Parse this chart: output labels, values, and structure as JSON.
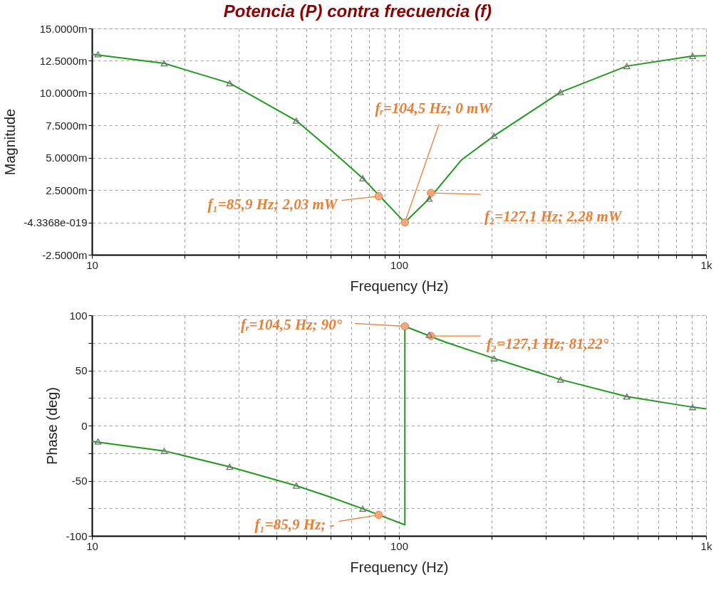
{
  "chart_data": [
    {
      "type": "line",
      "title": "Potencia (P) contra frecuencia (f)",
      "xlabel": "Frequency (Hz)",
      "ylabel": "Magnitude",
      "log": "x",
      "grid": true,
      "xlim": [
        10,
        1000
      ],
      "xticks": [
        10,
        {
          "value": 20,
          "label": null
        },
        {
          "value": 30,
          "label": null
        },
        {
          "value": 40,
          "label": null
        },
        {
          "value": 50,
          "label": null
        },
        {
          "value": 60,
          "label": null
        },
        {
          "value": 70,
          "label": null
        },
        {
          "value": 80,
          "label": null
        },
        {
          "value": 90,
          "label": null
        },
        100,
        {
          "value": 200,
          "label": null
        },
        {
          "value": 300,
          "label": null
        },
        {
          "value": 400,
          "label": null
        },
        {
          "value": 500,
          "label": null
        },
        {
          "value": 600,
          "label": null
        },
        {
          "value": 700,
          "label": null
        },
        {
          "value": 800,
          "label": null
        },
        {
          "value": 900,
          "label": null
        },
        {
          "value": 1000,
          "label": "1k"
        }
      ],
      "ylim": [
        -2.5,
        15
      ],
      "yticks": [
        {
          "value": -2.5,
          "label": "-2.5000m"
        },
        {
          "value": 0,
          "label": "-4.3368e-019"
        },
        {
          "value": 2.5,
          "label": "2.5000m"
        },
        {
          "value": 5,
          "label": "5.0000m"
        },
        {
          "value": 7.5,
          "label": "7.5000m"
        },
        {
          "value": 10,
          "label": "10.0000m"
        },
        {
          "value": 12.5,
          "label": "12.5000m"
        },
        {
          "value": 15,
          "label": "15.0000m"
        }
      ],
      "series": [
        {
          "color": "#1f9a1f",
          "x": [
            10,
            17.2,
            28.1,
            46.3,
            60,
            76.2,
            104.5,
            125.4,
            160,
            204,
            335.7,
            552,
            904,
            1000
          ],
          "values": [
            13.0,
            12.3,
            10.77,
            7.87,
            5.6,
            3.42,
            0,
            1.83,
            4.85,
            6.7,
            10.07,
            12.09,
            12.87,
            12.9
          ]
        },
        {
          "type": "scatter",
          "marker": "triangle",
          "color": "#707070",
          "x": [
            10.47,
            17.2,
            28.1,
            46.3,
            76.2,
            125.4,
            204,
            335.7,
            552,
            904
          ],
          "values": [
            13.0,
            12.3,
            10.77,
            7.87,
            3.42,
            1.83,
            6.7,
            10.07,
            12.09,
            12.87
          ]
        }
      ],
      "annotations": [
        {
          "text": "f₁=85,9 Hz; 2,03 mW",
          "x": 85.9,
          "y": 2.03
        },
        {
          "text": "fᵣ=104,5 Hz; 0 mW",
          "x": 104.5,
          "y": 0
        },
        {
          "text": "f₂=127,1 Hz; 2,28 mW",
          "x": 127.1,
          "y": 2.28
        }
      ]
    },
    {
      "type": "line",
      "xlabel": "Frequency (Hz)",
      "ylabel": "Phase (deg)",
      "log": "x",
      "grid": true,
      "xlim": [
        10,
        1000
      ],
      "xticks": [
        10,
        {
          "value": 20,
          "label": null
        },
        {
          "value": 30,
          "label": null
        },
        {
          "value": 40,
          "label": null
        },
        {
          "value": 50,
          "label": null
        },
        {
          "value": 60,
          "label": null
        },
        {
          "value": 70,
          "label": null
        },
        {
          "value": 80,
          "label": null
        },
        {
          "value": 90,
          "label": null
        },
        100,
        {
          "value": 200,
          "label": null
        },
        {
          "value": 300,
          "label": null
        },
        {
          "value": 400,
          "label": null
        },
        {
          "value": 500,
          "label": null
        },
        {
          "value": 600,
          "label": null
        },
        {
          "value": 700,
          "label": null
        },
        {
          "value": 800,
          "label": null
        },
        {
          "value": 900,
          "label": null
        },
        {
          "value": 1000,
          "label": "1k"
        }
      ],
      "ylim": [
        -100,
        100
      ],
      "yticks": [
        -100,
        {
          "value": -75,
          "label": null
        },
        -50,
        {
          "value": -25,
          "label": null
        },
        0,
        {
          "value": 25,
          "label": null
        },
        50,
        {
          "value": 75,
          "label": null
        },
        100
      ],
      "series": [
        {
          "color": "#1f9a1f",
          "x": [
            10,
            17.2,
            28.1,
            46.3,
            60,
            76.2,
            104.5,
            104.5,
            140,
            204,
            335.7,
            552,
            904,
            1000
          ],
          "values": [
            -14.3,
            -23.0,
            -37.4,
            -54.5,
            -65,
            -75.4,
            -90,
            90,
            76.1,
            60.9,
            41.7,
            26.3,
            16.7,
            15.1
          ]
        },
        {
          "type": "scatter",
          "marker": "triangle",
          "color": "#707070",
          "x": [
            10.47,
            17.2,
            28.1,
            46.3,
            76.2,
            125.4,
            204,
            335.7,
            552,
            904
          ],
          "values": [
            -14.5,
            -23.0,
            -37.4,
            -54.5,
            -75.4,
            82.2,
            60.9,
            41.7,
            26.3,
            16.7
          ]
        }
      ],
      "annotations": [
        {
          "text": "fᵣ=104,5 Hz; 90°",
          "x": 104.5,
          "y": 90
        },
        {
          "text": "f₂=127,1 Hz; 81,22°",
          "x": 127.1,
          "y": 81.22
        },
        {
          "text": "f₁=85,9 Hz; -",
          "x": 85.9,
          "y": -81
        }
      ]
    }
  ]
}
